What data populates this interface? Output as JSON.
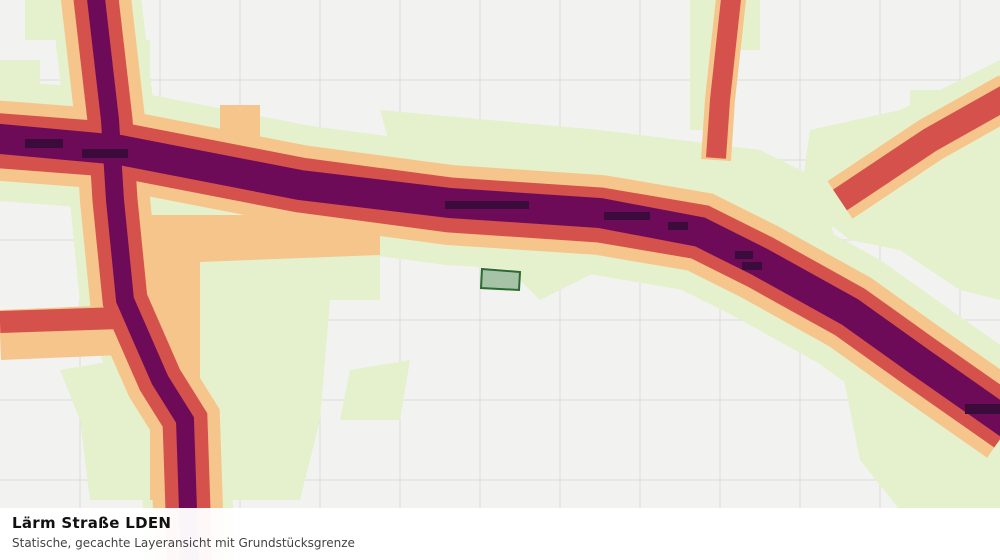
{
  "legend_panel": {
    "title": "Lärm Straße LDEN",
    "subtitle": "Statische, gecachte Layeransicht mit Grundstücksgrenze"
  }
}
